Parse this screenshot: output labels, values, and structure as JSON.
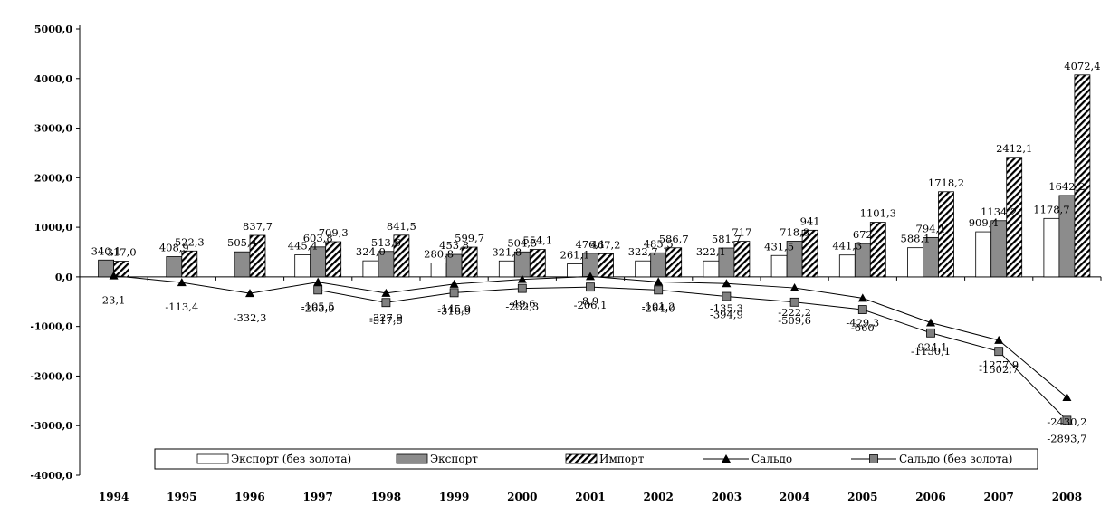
{
  "chart_data": {
    "type": "bar",
    "categories": [
      "1994",
      "1995",
      "1996",
      "1997",
      "1998",
      "1999",
      "2000",
      "2001",
      "2002",
      "2003",
      "2004",
      "2005",
      "2006",
      "2007",
      "2008"
    ],
    "ylim": [
      -4000,
      5000
    ],
    "yticks": [
      5000,
      4000,
      3000,
      2000,
      1000,
      0,
      -1000,
      -2000,
      -3000,
      -4000
    ],
    "ytick_labels": [
      "5000,0",
      "4000,0",
      "3000,0",
      "2000,0",
      "1000,0",
      "0,0",
      "-1000,0",
      "-2000,0",
      "-3000,0",
      "-4000,0"
    ],
    "grid": false,
    "legend_position": "bottom",
    "series": [
      {
        "name": "Экспорт (без золота)",
        "kind": "bar",
        "style": "white",
        "values": [
          null,
          null,
          null,
          445.4,
          324.0,
          280.8,
          321.8,
          261.1,
          322.7,
          322.1,
          431.5,
          441.3,
          588.1,
          909.4,
          1178.7
        ],
        "labels": [
          "",
          "",
          "",
          "445,4",
          "324,0",
          "280,8",
          "321,8",
          "261,1",
          "322,7",
          "322,1",
          "431,5",
          "441,3",
          "588,1",
          "909,4",
          "1178,7"
        ]
      },
      {
        "name": "Экспорт",
        "kind": "bar",
        "style": "gray",
        "values": [
          340.1,
          408.9,
          505.4,
          603.8,
          513.6,
          453.8,
          504.5,
          476.1,
          485.5,
          581.7,
          718.8,
          672,
          794.1,
          1134.2,
          1642.2
        ],
        "labels": [
          "340,1",
          "408,9",
          "505,4",
          "603,8",
          "513,6",
          "453,8",
          "504,5",
          "476,1",
          "485,5",
          "581,7",
          "718,8",
          "672",
          "794,1",
          "1134,2",
          "1642,2"
        ]
      },
      {
        "name": "Импорт",
        "kind": "bar",
        "style": "hatch",
        "values": [
          317.0,
          522.3,
          837.7,
          709.3,
          841.5,
          599.7,
          554.1,
          467.2,
          586.7,
          717,
          941,
          1101.3,
          1718.2,
          2412.1,
          4072.4
        ],
        "labels": [
          "317,0",
          "522,3",
          "837,7",
          "709,3",
          "841,5",
          "599,7",
          "554,1",
          "467,2",
          "586,7",
          "717",
          "941",
          "1101,3",
          "1718,2",
          "2412,1",
          "4072,4"
        ]
      },
      {
        "name": "Сальдо",
        "kind": "line",
        "marker": "triangle",
        "values": [
          23.1,
          -113.4,
          -332.3,
          -105.5,
          -327.9,
          -145.9,
          -49.6,
          8.9,
          -101.2,
          -135.3,
          -222.2,
          -429.3,
          -924.1,
          -1277.9,
          -2430.2
        ],
        "labels": [
          "23,1",
          "-113,4",
          "-332,3",
          "-105,5",
          "-327,9",
          "-145,9",
          "-49,6",
          "8,9",
          "-101,2",
          "-135,3",
          "-222,2",
          "-429,3",
          "-924,1",
          "-1277,9",
          "-2430,2"
        ]
      },
      {
        "name": "Сальдо (без золота)",
        "kind": "line",
        "marker": "square",
        "values": [
          null,
          null,
          null,
          -263.9,
          -517.5,
          -318.9,
          -232.3,
          -206.1,
          -264.0,
          -394.9,
          -509.6,
          -660,
          -1130.1,
          -1502.7,
          -2893.7
        ],
        "labels": [
          "",
          "",
          "",
          "-263,9",
          "-517,5",
          "-318,9",
          "-232,3",
          "-206,1",
          "-264,0",
          "-394,9",
          "-509,6",
          "-660",
          "-1130,1",
          "-1502,7",
          "-2893,7"
        ]
      }
    ]
  }
}
